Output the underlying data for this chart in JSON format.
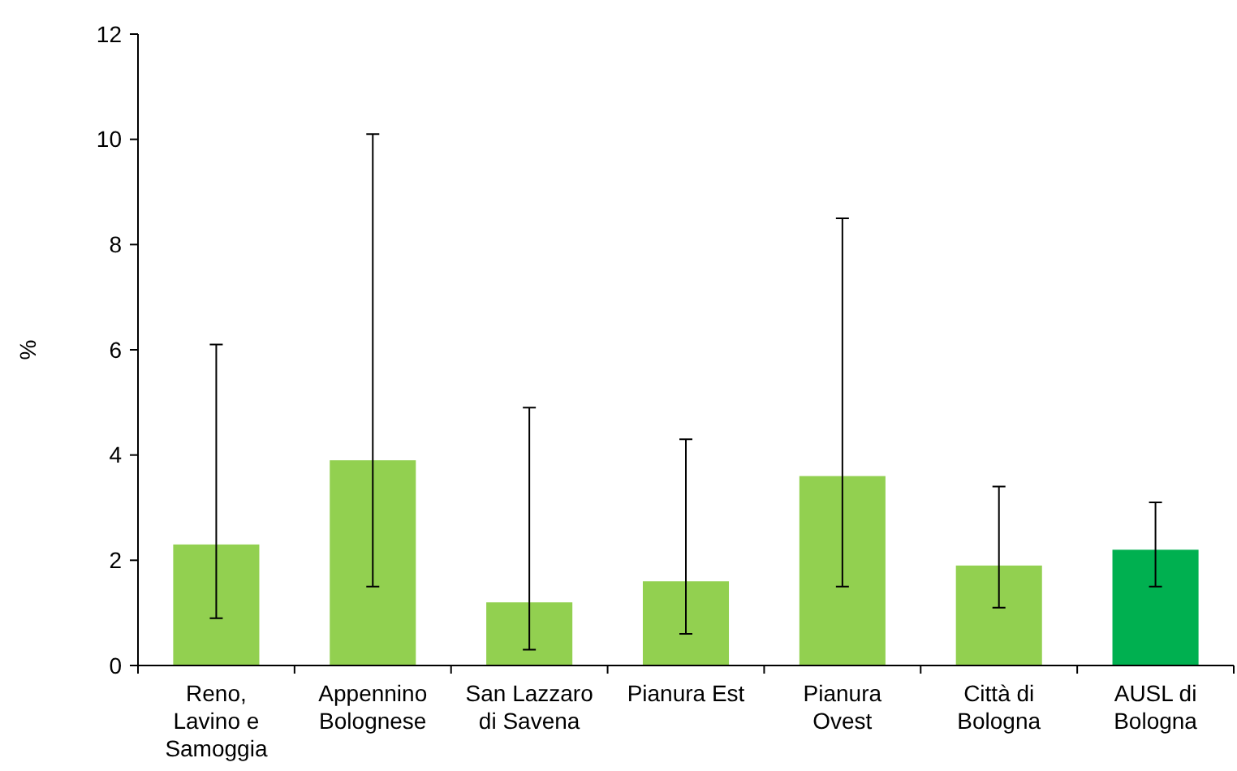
{
  "chart_data": {
    "type": "bar",
    "ylabel": "%",
    "categories": [
      "Reno, Lavino e Samoggia",
      "Appennino Bolognese",
      "San Lazzaro di Savena",
      "Pianura Est",
      "Pianura Ovest",
      "Città di Bologna",
      "AUSL di Bologna"
    ],
    "values": [
      2.3,
      3.9,
      1.2,
      1.6,
      3.6,
      1.9,
      2.2
    ],
    "errors": [
      [
        0.9,
        6.1
      ],
      [
        1.5,
        10.1
      ],
      [
        0.3,
        4.9
      ],
      [
        0.6,
        4.3
      ],
      [
        1.5,
        8.5
      ],
      [
        1.1,
        3.4
      ],
      [
        1.5,
        3.1
      ]
    ],
    "colors": [
      "#92d050",
      "#92d050",
      "#92d050",
      "#92d050",
      "#92d050",
      "#92d050",
      "#00b050"
    ],
    "ylim": [
      0,
      12
    ],
    "yticks": [
      0,
      2,
      4,
      6,
      8,
      10,
      12
    ]
  }
}
